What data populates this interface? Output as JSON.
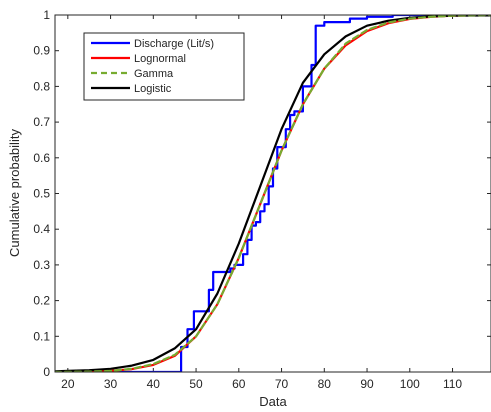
{
  "chart_data": {
    "type": "line",
    "title": "",
    "xlabel": "Data",
    "ylabel": "Cumulative probability",
    "xlim": [
      17,
      119
    ],
    "ylim": [
      0,
      1
    ],
    "xticks": [
      20,
      30,
      40,
      50,
      60,
      70,
      80,
      90,
      100,
      110
    ],
    "yticks": [
      0,
      0.1,
      0.2,
      0.3,
      0.4,
      0.5,
      0.6,
      0.7,
      0.8,
      0.9,
      1
    ],
    "ytick_labels": [
      "0",
      "0.1",
      "0.2",
      "0.3",
      "0.4",
      "0.5",
      "0.6",
      "0.7",
      "0.8",
      "0.9",
      "1"
    ],
    "grid": false,
    "legend_position": "top-left",
    "series": [
      {
        "name": "Discharge (Lit/s)",
        "color": "#0000ff",
        "style": "stairs",
        "x": [
          17,
          46.5,
          46.5,
          48,
          48,
          49.5,
          49.5,
          53,
          53,
          54,
          54,
          58,
          58,
          59,
          59,
          61,
          61,
          62,
          62,
          63,
          63,
          64,
          64,
          65,
          65,
          66,
          66,
          67,
          67,
          68,
          68,
          69,
          69,
          71,
          71,
          72,
          72,
          73,
          73,
          75,
          75,
          77,
          77,
          78,
          78,
          80,
          80,
          86,
          86,
          90,
          90,
          96,
          96,
          119
        ],
        "y": [
          0,
          0,
          0.07,
          0.07,
          0.12,
          0.12,
          0.17,
          0.17,
          0.23,
          0.23,
          0.28,
          0.28,
          0.29,
          0.29,
          0.3,
          0.3,
          0.33,
          0.33,
          0.37,
          0.37,
          0.41,
          0.41,
          0.42,
          0.42,
          0.45,
          0.45,
          0.47,
          0.47,
          0.52,
          0.52,
          0.57,
          0.57,
          0.63,
          0.63,
          0.68,
          0.68,
          0.72,
          0.72,
          0.73,
          0.73,
          0.8,
          0.8,
          0.86,
          0.86,
          0.97,
          0.97,
          0.98,
          0.98,
          0.99,
          0.99,
          0.995,
          0.995,
          1.0,
          1.0
        ]
      },
      {
        "name": "Lognormal",
        "color": "#ff0000",
        "style": "solid",
        "x": [
          17,
          25,
          30,
          35,
          40,
          45,
          50,
          55,
          60,
          65,
          70,
          75,
          80,
          85,
          90,
          95,
          100,
          105,
          110,
          119
        ],
        "y": [
          0.0,
          0.001,
          0.003,
          0.008,
          0.02,
          0.045,
          0.1,
          0.19,
          0.32,
          0.47,
          0.62,
          0.75,
          0.85,
          0.915,
          0.955,
          0.977,
          0.989,
          0.995,
          0.998,
          1.0
        ]
      },
      {
        "name": "Gamma",
        "color": "#77ac30",
        "style": "dashed",
        "x": [
          17,
          25,
          30,
          35,
          40,
          45,
          50,
          55,
          60,
          65,
          70,
          75,
          80,
          85,
          90,
          95,
          100,
          105,
          110,
          119
        ],
        "y": [
          0.0,
          0.001,
          0.003,
          0.009,
          0.022,
          0.048,
          0.1,
          0.19,
          0.32,
          0.47,
          0.62,
          0.75,
          0.85,
          0.92,
          0.958,
          0.979,
          0.99,
          0.995,
          0.998,
          1.0
        ]
      },
      {
        "name": "Logistic",
        "color": "#000000",
        "style": "solid",
        "x": [
          17,
          20,
          25,
          30,
          35,
          40,
          45,
          50,
          55,
          60,
          65,
          70,
          75,
          80,
          85,
          90,
          95,
          100,
          105,
          110,
          119
        ],
        "y": [
          0.002,
          0.003,
          0.005,
          0.009,
          0.018,
          0.034,
          0.066,
          0.12,
          0.22,
          0.36,
          0.52,
          0.68,
          0.81,
          0.89,
          0.94,
          0.97,
          0.984,
          0.992,
          0.996,
          0.998,
          0.999
        ]
      }
    ]
  }
}
